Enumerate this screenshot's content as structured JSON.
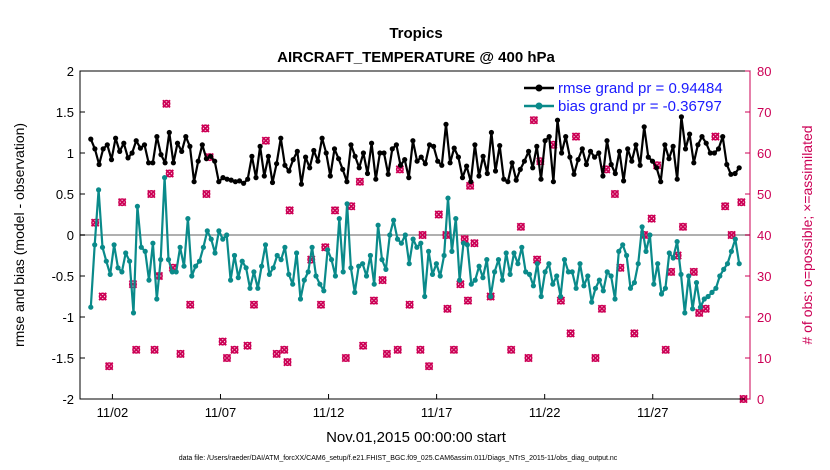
{
  "chart_data": {
    "type": "line",
    "title": "Tropics",
    "subtitle": "AIRCRAFT_TEMPERATURE @ 400 hPa",
    "xlabel": "Nov.01,2015 00:00:00 start",
    "ylabel_left": "rmse and bias (model - observation)",
    "ylabel_right": "# of obs: o=possible; ×=assimilated",
    "ylim_left": [
      -2,
      2
    ],
    "ylim_right": [
      0,
      80
    ],
    "yticks_left": [
      "-2",
      "-1.5",
      "-1",
      "-0.5",
      "0",
      "0.5",
      "1",
      "1.5",
      "2"
    ],
    "yticks_right": [
      "0",
      "10",
      "20",
      "30",
      "40",
      "50",
      "60",
      "70",
      "80"
    ],
    "xlim": [
      0.5,
      31.5
    ],
    "xticks": [
      {
        "x": 2,
        "label": "11/02"
      },
      {
        "x": 7,
        "label": "11/07"
      },
      {
        "x": 12,
        "label": "11/12"
      },
      {
        "x": 17,
        "label": "11/17"
      },
      {
        "x": 22,
        "label": "11/22"
      },
      {
        "x": 27,
        "label": "11/27"
      }
    ],
    "colors": {
      "rmse": "#000000",
      "bias": "#0a8a8a",
      "obs": "#cc0055",
      "legend_text": "#1a1aff",
      "zero_line": "#b0b0b0"
    },
    "series": [
      {
        "name": "rmse grand pr = 0.94484",
        "values": [
          1.17,
          1.05,
          0.86,
          1.05,
          1.1,
          0.92,
          1.18,
          1.02,
          1.12,
          0.94,
          1.0,
          1.15,
          1.06,
          1.1,
          0.88,
          0.88,
          1.2,
          0.98,
          0.88,
          1.25,
          0.88,
          1.12,
          1.02,
          1.2,
          1.08,
          0.65,
          0.9,
          1.1,
          0.93,
          0.96,
          0.9,
          0.65,
          0.7,
          0.68,
          0.67,
          0.65,
          0.66,
          0.63,
          0.68,
          0.96,
          0.7,
          1.08,
          0.72,
          0.96,
          0.64,
          0.87,
          1.18,
          0.85,
          0.78,
          0.92,
          1.02,
          0.62,
          0.95,
          0.82,
          1.03,
          0.9,
          1.18,
          1.0,
          0.72,
          1.05,
          0.93,
          0.8,
          0.65,
          1.1,
          0.96,
          0.82,
          1.0,
          0.75,
          1.12,
          0.68,
          1.0,
          1.0,
          0.74,
          1.05,
          1.1,
          0.85,
          0.92,
          0.7,
          1.15,
          0.9,
          0.95,
          0.87,
          1.1,
          1.08,
          0.9,
          0.85,
          1.35,
          0.88,
          1.06,
          0.95,
          0.7,
          0.84,
          0.65,
          1.1,
          0.72,
          0.96,
          0.75,
          1.25,
          0.78,
          1.09,
          0.68,
          0.65,
          0.88,
          0.67,
          0.8,
          0.9,
          1.02,
          0.82,
          1.08,
          0.68,
          1.15,
          1.2,
          0.65,
          1.4,
          1.0,
          1.2,
          0.95,
          0.74,
          0.92,
          1.05,
          0.86,
          1.02,
          0.95,
          1.0,
          0.72,
          1.15,
          0.86,
          0.75,
          1.02,
          0.66,
          1.05,
          0.9,
          1.1,
          0.85,
          1.32,
          0.95,
          0.9,
          0.82,
          0.65,
          1.1,
          0.93,
          1.08,
          0.68,
          1.44,
          1.05,
          1.23,
          0.88,
          1.1,
          1.2,
          1.12,
          1.0,
          1.0,
          1.05,
          1.2,
          0.86,
          0.74,
          0.75,
          0.82
        ]
      },
      {
        "name": "bias grand pr = -0.36797",
        "values": [
          -0.88,
          -0.12,
          0.55,
          -0.15,
          -0.32,
          -0.48,
          -0.12,
          -0.4,
          -0.45,
          -0.22,
          -0.32,
          -0.95,
          0.35,
          -0.15,
          -0.2,
          -0.55,
          -0.1,
          -0.78,
          -0.3,
          0.7,
          -0.3,
          -0.45,
          -0.45,
          -0.15,
          -0.38,
          0.2,
          -0.5,
          -0.38,
          -0.32,
          -0.15,
          0.05,
          -0.05,
          -0.22,
          0.05,
          -0.05,
          0.0,
          -0.55,
          -0.25,
          -0.52,
          -0.32,
          -0.4,
          -0.65,
          -0.45,
          -0.65,
          -0.38,
          -0.12,
          -0.48,
          -0.4,
          -0.25,
          -0.3,
          -0.15,
          -0.48,
          -0.6,
          -0.22,
          -0.78,
          -0.55,
          -0.45,
          -0.15,
          -0.5,
          -0.6,
          -0.68,
          -0.18,
          -0.3,
          -0.5,
          0.2,
          -0.45,
          0.38,
          -0.4,
          -0.7,
          -0.38,
          -0.35,
          -0.5,
          -0.25,
          -0.6,
          0.12,
          -0.3,
          -0.42,
          0.0,
          0.18,
          -0.05,
          -0.1,
          0.0,
          -0.35,
          -0.05,
          -0.15,
          -0.1,
          -0.75,
          -0.2,
          -0.48,
          -0.35,
          -0.5,
          -0.25,
          0.45,
          -0.2,
          0.2,
          -0.55,
          -0.1,
          -0.12,
          -0.6,
          -0.55,
          -0.38,
          -0.52,
          -0.3,
          -0.75,
          -0.45,
          -0.3,
          -0.55,
          -0.22,
          -0.48,
          -0.22,
          -0.35,
          -0.15,
          -0.45,
          -0.48,
          -0.62,
          -0.35,
          -0.75,
          -0.45,
          -0.35,
          -0.6,
          -0.5,
          -0.75,
          -0.3,
          -0.45,
          -0.45,
          -0.65,
          -0.35,
          -0.62,
          -0.5,
          -0.82,
          -0.65,
          -0.55,
          -0.68,
          -0.45,
          -0.5,
          -0.78,
          -0.2,
          -0.12,
          -0.25,
          -0.65,
          -0.58,
          -0.35,
          0.1,
          -0.2,
          0.0,
          -0.6,
          -0.35,
          -0.72,
          -0.65,
          -0.22,
          -0.28,
          -0.08,
          -0.48,
          -0.95,
          -0.5,
          -0.9,
          -0.58,
          -0.88,
          -0.78,
          -0.75,
          -0.7,
          -0.65,
          -0.5,
          -0.42,
          -0.35,
          -0.2,
          -0.05,
          -0.35
        ]
      }
    ],
    "obs_points": [
      [
        1.2,
        43
      ],
      [
        1.55,
        25
      ],
      [
        1.85,
        8
      ],
      [
        2.45,
        48
      ],
      [
        2.95,
        28
      ],
      [
        3.1,
        12
      ],
      [
        3.8,
        50
      ],
      [
        3.95,
        12
      ],
      [
        4.15,
        30
      ],
      [
        4.5,
        72
      ],
      [
        4.65,
        55
      ],
      [
        4.8,
        32
      ],
      [
        5.15,
        11
      ],
      [
        5.6,
        23
      ],
      [
        6.3,
        66
      ],
      [
        6.35,
        50
      ],
      [
        6.5,
        59
      ],
      [
        7.1,
        14
      ],
      [
        7.3,
        10
      ],
      [
        7.65,
        12
      ],
      [
        8.25,
        13
      ],
      [
        8.55,
        23
      ],
      [
        9.1,
        63
      ],
      [
        9.6,
        11
      ],
      [
        9.95,
        12
      ],
      [
        10.1,
        9
      ],
      [
        10.2,
        46
      ],
      [
        11.2,
        34
      ],
      [
        11.65,
        23
      ],
      [
        11.85,
        37
      ],
      [
        12.3,
        46
      ],
      [
        12.8,
        10
      ],
      [
        13.05,
        47
      ],
      [
        13.45,
        53
      ],
      [
        13.6,
        13
      ],
      [
        14.1,
        24
      ],
      [
        14.5,
        29
      ],
      [
        14.7,
        11
      ],
      [
        15.2,
        12
      ],
      [
        15.3,
        56
      ],
      [
        15.75,
        23
      ],
      [
        16.25,
        12
      ],
      [
        16.35,
        40
      ],
      [
        16.65,
        8
      ],
      [
        17.1,
        45
      ],
      [
        17.45,
        40
      ],
      [
        17.5,
        22
      ],
      [
        17.8,
        12
      ],
      [
        18.1,
        28
      ],
      [
        18.3,
        39
      ],
      [
        18.45,
        24
      ],
      [
        18.55,
        52
      ],
      [
        18.75,
        38
      ],
      [
        19.5,
        25
      ],
      [
        20.45,
        12
      ],
      [
        20.9,
        42
      ],
      [
        21.25,
        10
      ],
      [
        21.5,
        68
      ],
      [
        21.65,
        34
      ],
      [
        21.8,
        58
      ],
      [
        22.4,
        62
      ],
      [
        22.75,
        24
      ],
      [
        23.2,
        16
      ],
      [
        23.45,
        64
      ],
      [
        24.35,
        10
      ],
      [
        24.65,
        22
      ],
      [
        24.85,
        56
      ],
      [
        25.25,
        50
      ],
      [
        25.5,
        32
      ],
      [
        26.15,
        16
      ],
      [
        26.6,
        40
      ],
      [
        26.95,
        44
      ],
      [
        27.2,
        57
      ],
      [
        27.6,
        12
      ],
      [
        27.85,
        31
      ],
      [
        28.15,
        35
      ],
      [
        28.4,
        42
      ],
      [
        28.9,
        31
      ],
      [
        29.15,
        21
      ],
      [
        29.45,
        22
      ],
      [
        29.9,
        64
      ],
      [
        30.35,
        47
      ],
      [
        30.65,
        40
      ],
      [
        31.1,
        48
      ],
      [
        31.2,
        0
      ]
    ]
  },
  "legend": {
    "rmse_label": "rmse grand pr = 0.94484",
    "bias_label": "bias grand pr = -0.36797"
  },
  "footer": "data file: /Users/raeder/DAI/ATM_forcXX/CAM6_setup/f.e21.FHIST_BGC.f09_025.CAM6assim.011/Diags_NTrS_2015-11/obs_diag_output.nc"
}
